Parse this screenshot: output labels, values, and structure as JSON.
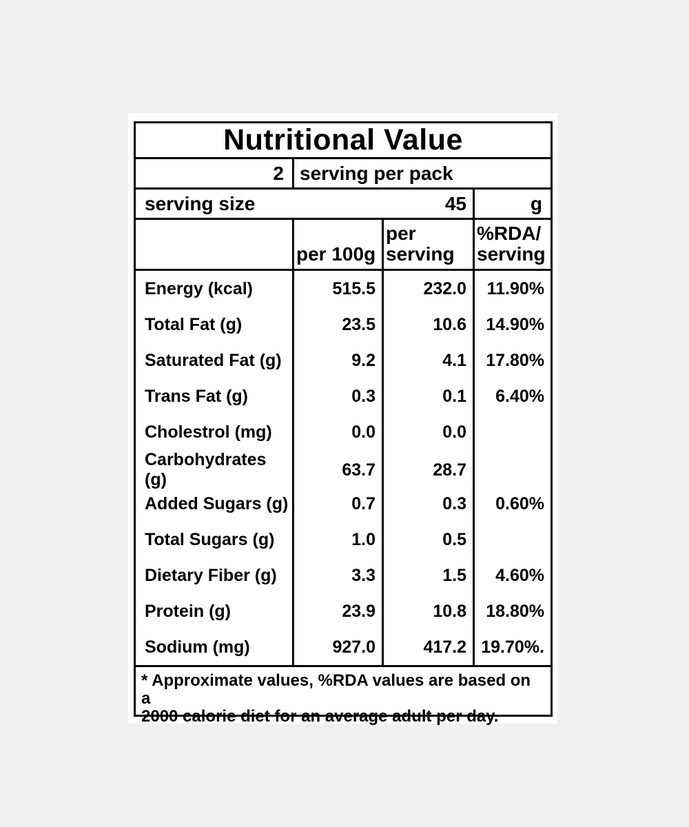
{
  "colors": {
    "page_background": "#f0f0f1",
    "label_background": "#ffffff",
    "border": "#000000",
    "text": "#000000"
  },
  "label": {
    "title": "Nutritional Value",
    "servings_per_pack": {
      "count": "2",
      "text": "serving per pack"
    },
    "serving_size": {
      "text": "serving size",
      "value": "45",
      "unit": "g"
    },
    "columns": {
      "per_100g": "per 100g",
      "per_serving_line1": "per",
      "per_serving_line2": "serving",
      "rda_line1": "%RDA/",
      "rda_line2": "serving"
    },
    "rows": [
      {
        "nutrient": "Energy (kcal)",
        "per_100g": "515.5",
        "per_serving": "232.0",
        "rda": "11.90%"
      },
      {
        "nutrient": "Total Fat (g)",
        "per_100g": "23.5",
        "per_serving": "10.6",
        "rda": "14.90%"
      },
      {
        "nutrient": "Saturated Fat (g)",
        "per_100g": "9.2",
        "per_serving": "4.1",
        "rda": "17.80%"
      },
      {
        "nutrient": "Trans Fat (g)",
        "per_100g": "0.3",
        "per_serving": "0.1",
        "rda": "6.40%"
      },
      {
        "nutrient": "Cholestrol (mg)",
        "per_100g": "0.0",
        "per_serving": "0.0",
        "rda": ""
      },
      {
        "nutrient": "Carbohydrates (g)",
        "per_100g": "63.7",
        "per_serving": "28.7",
        "rda": ""
      },
      {
        "nutrient": "Added Sugars (g)",
        "per_100g": "0.7",
        "per_serving": "0.3",
        "rda": "0.60%"
      },
      {
        "nutrient": "Total Sugars (g)",
        "per_100g": "1.0",
        "per_serving": "0.5",
        "rda": ""
      },
      {
        "nutrient": "Dietary Fiber (g)",
        "per_100g": "3.3",
        "per_serving": "1.5",
        "rda": "4.60%"
      },
      {
        "nutrient": "Protein (g)",
        "per_100g": "23.9",
        "per_serving": "10.8",
        "rda": "18.80%"
      },
      {
        "nutrient": "Sodium (mg)",
        "per_100g": "927.0",
        "per_serving": "417.2",
        "rda": "19.70%."
      }
    ],
    "footnote_line1": "* Approximate values, %RDA values are based on a",
    "footnote_line2": "2000 calorie diet for an average adult per day."
  }
}
